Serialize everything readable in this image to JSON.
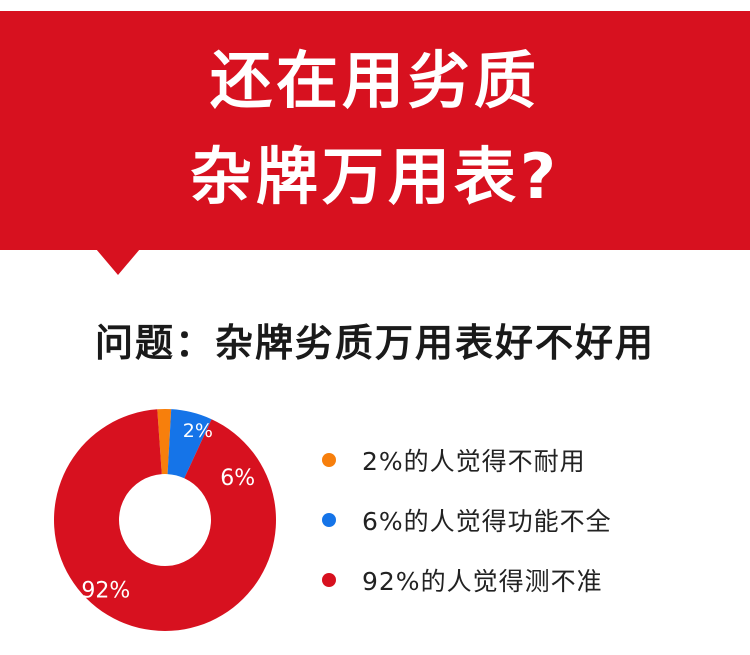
{
  "header": {
    "title_line1": "还在用劣质",
    "title_line2": "杂牌万用表?",
    "banner_color": "#d7111f"
  },
  "question": "问题：杂牌劣质万用表好不好用",
  "chart_data": {
    "type": "pie",
    "donut": true,
    "slices": [
      {
        "label": "2%",
        "value": 2,
        "color": "#f77f0c",
        "legend": "2%的人觉得不耐用"
      },
      {
        "label": "6%",
        "value": 6,
        "color": "#1574e8",
        "legend": "6%的人觉得功能不全"
      },
      {
        "label": "92%",
        "value": 92,
        "color": "#d7111f",
        "legend": "92%的人觉得测不准"
      }
    ],
    "legend_placement": "right"
  }
}
